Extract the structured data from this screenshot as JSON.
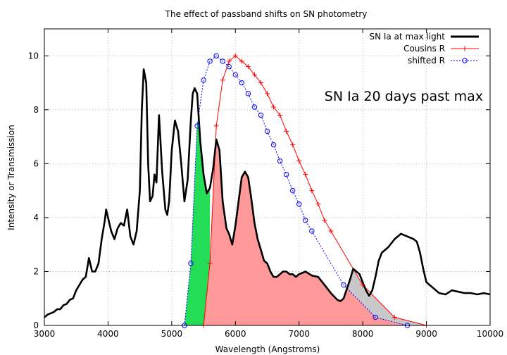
{
  "chart_data": {
    "type": "line",
    "title": "The effect of passband shifts on SN photometry",
    "xlabel": "Wavelength (Angstroms)",
    "ylabel": "Intensity or Transmission",
    "xlim": [
      3000,
      10000
    ],
    "ylim": [
      0,
      11
    ],
    "xticks": [
      3000,
      4000,
      5000,
      6000,
      7000,
      8000,
      9000,
      10000
    ],
    "yticks": [
      0,
      2,
      4,
      6,
      8,
      10
    ],
    "grid": true,
    "legend_position": "top-right",
    "annotation": "SN Ia 20 days past max",
    "colors": {
      "spectrum": "#000000",
      "cousins": "#ff0000",
      "shifted": "#0000ff",
      "fill_red": "#ff9999",
      "fill_green": "#22dd55",
      "fill_grey": "#c8c8c8"
    },
    "series": [
      {
        "name": "SN Ia at max light",
        "style": "line",
        "x": [
          3000,
          3050,
          3100,
          3150,
          3200,
          3250,
          3300,
          3350,
          3400,
          3450,
          3500,
          3550,
          3600,
          3650,
          3700,
          3750,
          3800,
          3850,
          3900,
          3950,
          3970,
          4000,
          4050,
          4100,
          4150,
          4200,
          4250,
          4300,
          4350,
          4400,
          4450,
          4500,
          4530,
          4560,
          4600,
          4630,
          4660,
          4700,
          4730,
          4760,
          4800,
          4850,
          4900,
          4930,
          4960,
          5000,
          5050,
          5100,
          5150,
          5200,
          5250,
          5300,
          5330,
          5360,
          5400,
          5450,
          5500,
          5550,
          5600,
          5650,
          5700,
          5750,
          5800,
          5830,
          5860,
          5900,
          5950,
          6000,
          6050,
          6100,
          6150,
          6200,
          6250,
          6300,
          6350,
          6400,
          6450,
          6500,
          6550,
          6600,
          6650,
          6700,
          6750,
          6800,
          6850,
          6900,
          6950,
          7000,
          7100,
          7200,
          7300,
          7400,
          7500,
          7600,
          7650,
          7700,
          7750,
          7800,
          7850,
          7900,
          7950,
          8000,
          8050,
          8100,
          8150,
          8200,
          8250,
          8300,
          8400,
          8500,
          8600,
          8700,
          8800,
          8850,
          8900,
          8950,
          9000,
          9100,
          9200,
          9300,
          9400,
          9500,
          9600,
          9700,
          9800,
          9900,
          10000
        ],
        "values": [
          0.3,
          0.4,
          0.45,
          0.5,
          0.6,
          0.6,
          0.75,
          0.8,
          0.95,
          1.0,
          1.3,
          1.5,
          1.7,
          1.8,
          2.5,
          2.0,
          2.0,
          2.3,
          3.2,
          3.9,
          4.3,
          4.0,
          3.5,
          3.2,
          3.6,
          3.8,
          3.7,
          4.3,
          3.3,
          3.0,
          3.5,
          5.0,
          8.0,
          9.5,
          9.0,
          6.0,
          4.6,
          4.8,
          5.6,
          5.3,
          7.8,
          5.7,
          4.3,
          4.1,
          4.6,
          6.5,
          7.6,
          7.2,
          6.0,
          4.6,
          5.4,
          7.6,
          8.6,
          8.8,
          8.6,
          6.8,
          5.6,
          4.9,
          5.1,
          5.8,
          6.9,
          6.5,
          4.6,
          4.1,
          3.6,
          3.4,
          3.0,
          3.7,
          4.6,
          5.5,
          5.7,
          5.5,
          4.7,
          3.8,
          3.2,
          2.8,
          2.4,
          2.3,
          2.0,
          1.8,
          1.8,
          1.9,
          2.0,
          2.0,
          1.9,
          1.9,
          1.8,
          1.9,
          2.0,
          1.85,
          1.8,
          1.5,
          1.2,
          0.95,
          0.9,
          1.0,
          1.35,
          1.7,
          2.1,
          2.0,
          1.9,
          1.6,
          1.3,
          1.1,
          1.3,
          1.8,
          2.4,
          2.7,
          2.9,
          3.2,
          3.4,
          3.3,
          3.2,
          3.1,
          2.7,
          2.1,
          1.6,
          1.4,
          1.2,
          1.15,
          1.3,
          1.25,
          1.2,
          1.2,
          1.15,
          1.2,
          1.15
        ]
      },
      {
        "name": "Cousins R",
        "style": "line+cross",
        "x": [
          5500,
          5600,
          5700,
          5800,
          5900,
          6000,
          6100,
          6200,
          6300,
          6400,
          6500,
          6600,
          6700,
          6800,
          6900,
          7000,
          7100,
          7200,
          7300,
          7400,
          7500,
          8000,
          8500,
          9000
        ],
        "values": [
          0.0,
          2.3,
          7.4,
          9.1,
          9.8,
          10.0,
          9.8,
          9.6,
          9.3,
          9.0,
          8.6,
          8.1,
          7.8,
          7.2,
          6.7,
          6.1,
          5.6,
          5.0,
          4.5,
          3.9,
          3.5,
          1.5,
          0.3,
          0.0
        ]
      },
      {
        "name": "shifted R",
        "style": "dotted+circle",
        "x": [
          5200,
          5300,
          5400,
          5500,
          5600,
          5700,
          5800,
          5900,
          6000,
          6100,
          6200,
          6300,
          6400,
          6500,
          6600,
          6700,
          6800,
          6900,
          7000,
          7100,
          7200,
          7700,
          8200,
          8700
        ],
        "values": [
          0.0,
          2.3,
          7.4,
          9.1,
          9.8,
          10.0,
          9.8,
          9.6,
          9.3,
          9.0,
          8.6,
          8.1,
          7.8,
          7.2,
          6.7,
          6.1,
          5.6,
          5.0,
          4.5,
          3.9,
          3.5,
          1.5,
          0.3,
          0.0
        ]
      }
    ]
  }
}
